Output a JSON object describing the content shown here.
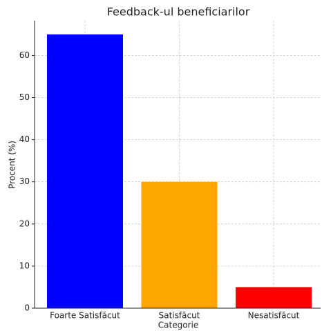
{
  "chart_data": {
    "type": "bar",
    "title": "Feedback-ul beneficiarilor",
    "xlabel": "Categorie",
    "ylabel": "Procent (%)",
    "categories": [
      "Foarte Satisfăcut",
      "Satisfăcut",
      "Nesatisfăcut"
    ],
    "values": [
      65,
      30,
      5
    ],
    "colors": [
      "#0000ff",
      "#ffa500",
      "#ff0000"
    ],
    "ylim": [
      0,
      68.25
    ],
    "yticks": [
      0,
      10,
      20,
      30,
      40,
      50,
      60
    ],
    "grid": true
  }
}
